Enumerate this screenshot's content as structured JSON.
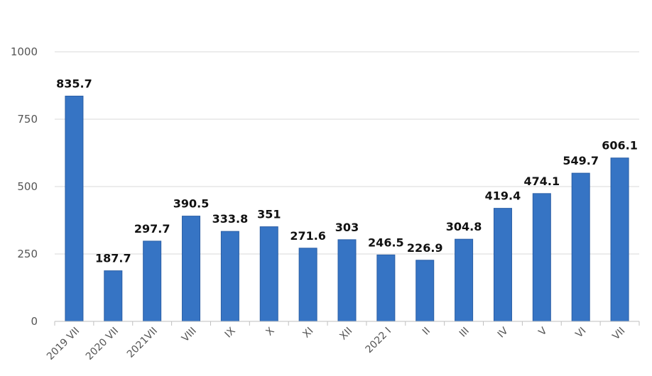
{
  "chart_data": {
    "type": "bar",
    "title": "",
    "xlabel": "",
    "ylabel": "",
    "categories": [
      "2019 VII",
      "2020 VII",
      "2021VII",
      "VIII",
      "IX",
      "X",
      "XI",
      "XII",
      "2022 I",
      "II",
      "III",
      "IV",
      "V",
      "VI",
      "VII"
    ],
    "values": [
      835.7,
      187.7,
      297.7,
      390.5,
      333.8,
      351,
      271.6,
      303,
      246.5,
      226.9,
      304.8,
      419.4,
      474.1,
      549.7,
      606.1
    ],
    "value_labels": [
      "835.7",
      "187.7",
      "297.7",
      "390.5",
      "333.8",
      "351",
      "271.6",
      "303",
      "246.5",
      "226.9",
      "304.8",
      "419.4",
      "474.1",
      "549.7",
      "606.1"
    ],
    "ylim": [
      0,
      1000
    ],
    "yticks": [
      0,
      250,
      500,
      750,
      1000
    ],
    "ytick_labels": [
      "0",
      "250",
      "500",
      "750",
      "1000"
    ],
    "grid": true,
    "legend": "none",
    "colors": {
      "bar": "#3674c4",
      "bar_edge": "#2a5ea6",
      "grid": "#d9d9d9",
      "axis": "#bfbfbf"
    }
  }
}
